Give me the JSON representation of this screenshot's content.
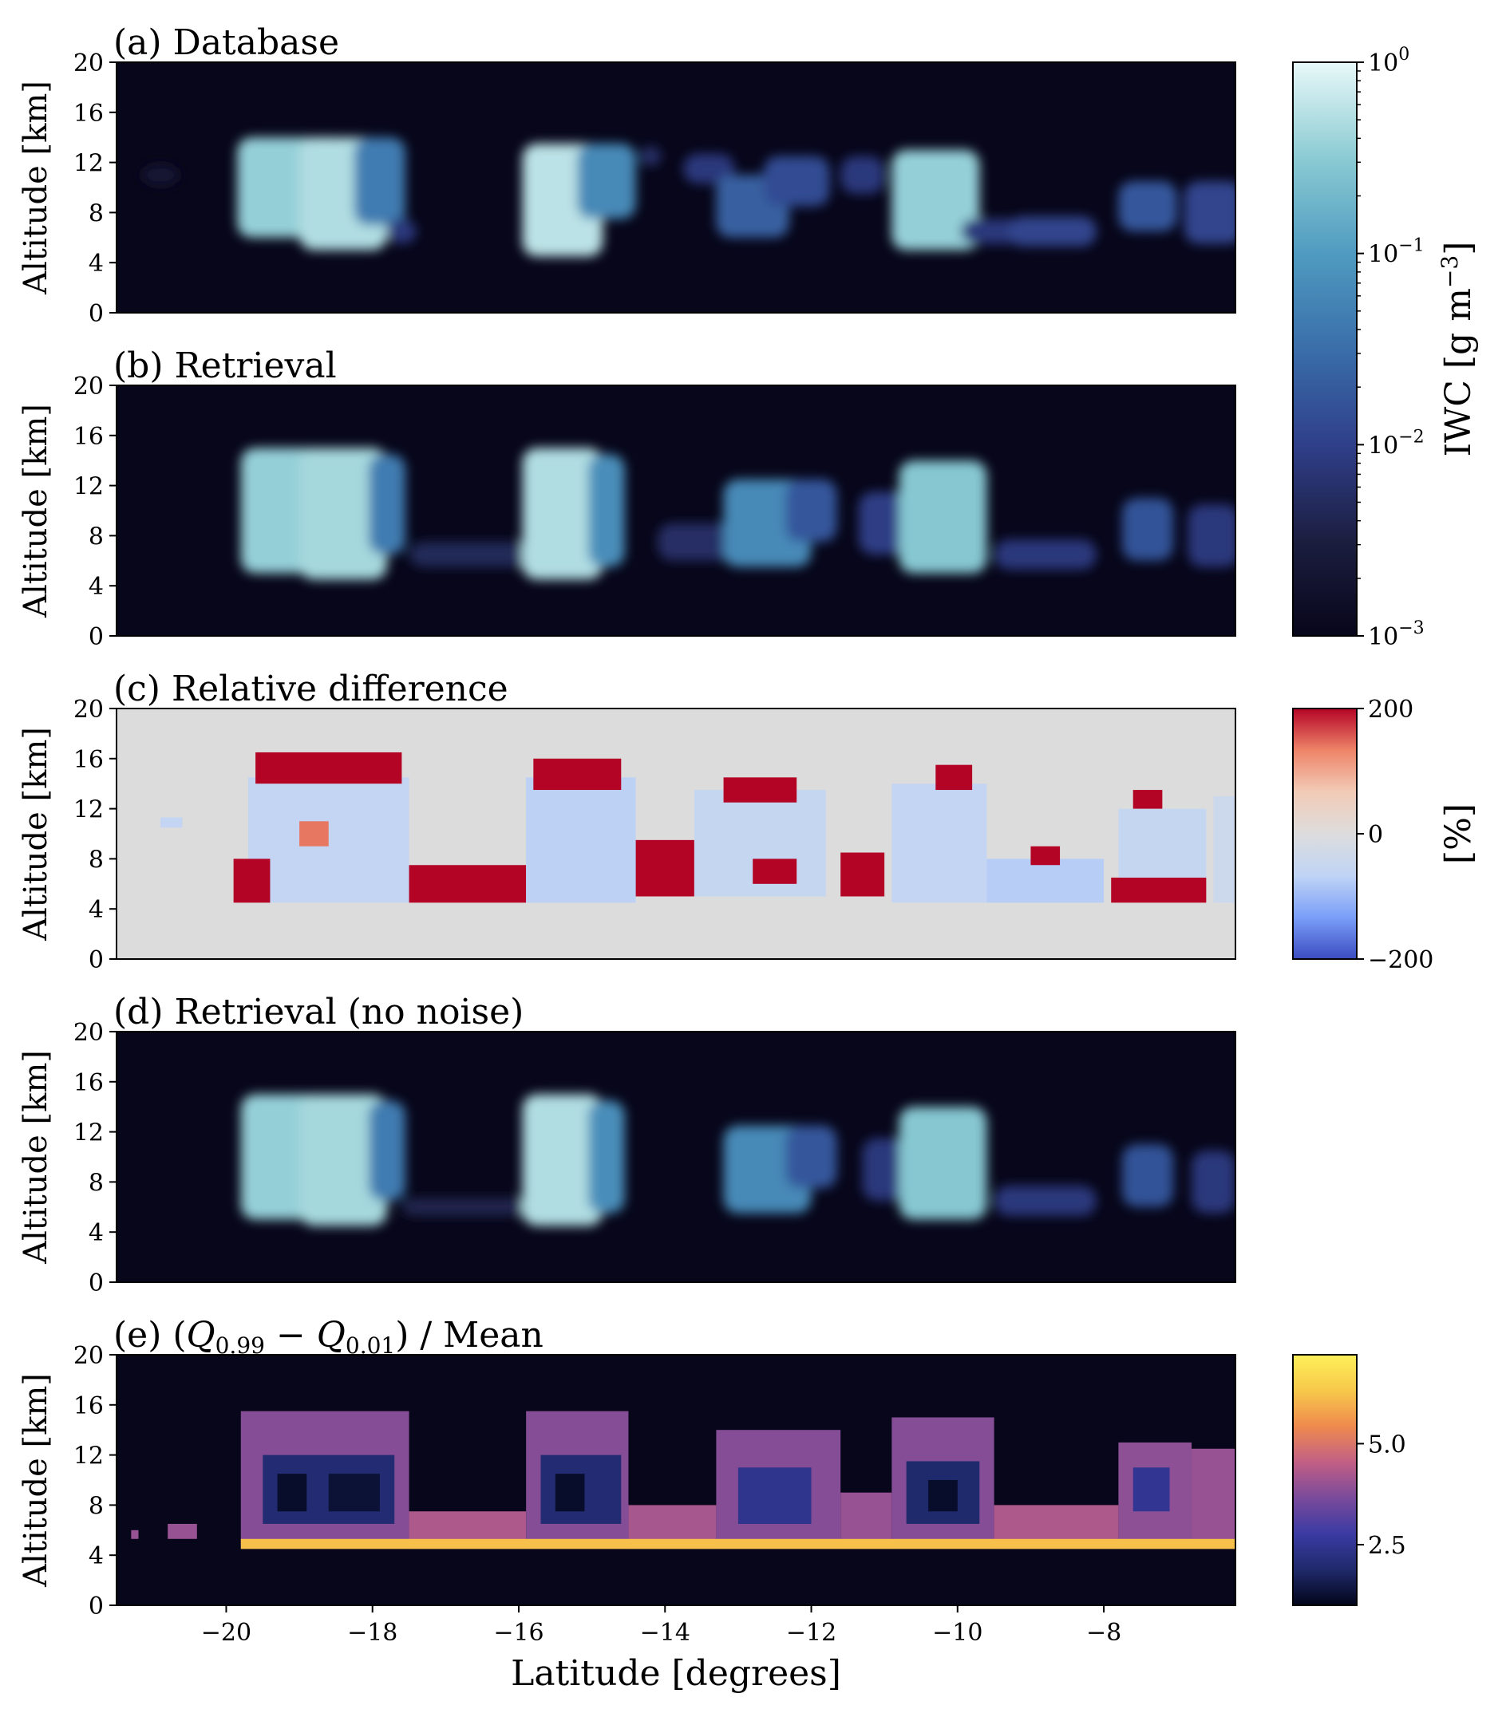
{
  "chart_data": [
    {
      "panel": "a",
      "type": "heatmap",
      "title": "(a) Database",
      "ylabel": "Altitude [km]",
      "xlabel": "",
      "xlim": [
        -21.5,
        -6.2
      ],
      "ylim": [
        0,
        20
      ],
      "yticks": [
        0,
        4,
        8,
        12,
        16,
        20
      ],
      "xticks": [],
      "colorbar": "iwc",
      "background": "#07061a",
      "blobs": [
        {
          "lat": -20.9,
          "alt": 11.0,
          "w": 0.25,
          "h": 0.8,
          "v": 0.12
        },
        {
          "lat": -19.1,
          "alt": 10.0,
          "w": 0.75,
          "h": 4.0,
          "v": 0.85
        },
        {
          "lat": -18.4,
          "alt": 9.5,
          "w": 0.6,
          "h": 4.5,
          "v": 0.9
        },
        {
          "lat": -17.9,
          "alt": 10.5,
          "w": 0.35,
          "h": 3.5,
          "v": 0.55
        },
        {
          "lat": -17.6,
          "alt": 6.5,
          "w": 0.2,
          "h": 1.0,
          "v": 0.3
        },
        {
          "lat": -15.4,
          "alt": 9.0,
          "w": 0.55,
          "h": 4.5,
          "v": 0.92
        },
        {
          "lat": -14.8,
          "alt": 10.5,
          "w": 0.4,
          "h": 3.0,
          "v": 0.6
        },
        {
          "lat": -14.2,
          "alt": 12.5,
          "w": 0.15,
          "h": 0.8,
          "v": 0.25
        },
        {
          "lat": -13.4,
          "alt": 11.5,
          "w": 0.35,
          "h": 1.2,
          "v": 0.3
        },
        {
          "lat": -12.8,
          "alt": 8.5,
          "w": 0.5,
          "h": 2.5,
          "v": 0.45
        },
        {
          "lat": -12.2,
          "alt": 10.5,
          "w": 0.45,
          "h": 2.0,
          "v": 0.38
        },
        {
          "lat": -11.3,
          "alt": 11.0,
          "w": 0.3,
          "h": 1.5,
          "v": 0.3
        },
        {
          "lat": -10.3,
          "alt": 9.0,
          "w": 0.6,
          "h": 4.0,
          "v": 0.85
        },
        {
          "lat": -9.5,
          "alt": 6.5,
          "w": 0.45,
          "h": 1.0,
          "v": 0.3
        },
        {
          "lat": -8.7,
          "alt": 6.5,
          "w": 0.6,
          "h": 1.2,
          "v": 0.35
        },
        {
          "lat": -7.4,
          "alt": 8.5,
          "w": 0.4,
          "h": 2.0,
          "v": 0.42
        },
        {
          "lat": -6.5,
          "alt": 8.0,
          "w": 0.4,
          "h": 2.5,
          "v": 0.35
        }
      ]
    },
    {
      "panel": "b",
      "type": "heatmap",
      "title": "(b) Retrieval",
      "ylabel": "Altitude [km]",
      "xlabel": "",
      "xlim": [
        -21.5,
        -6.2
      ],
      "ylim": [
        0,
        20
      ],
      "yticks": [
        0,
        4,
        8,
        12,
        16,
        20
      ],
      "xticks": [],
      "colorbar": "iwc",
      "background": "#07061a",
      "blobs": [
        {
          "lat": -19.1,
          "alt": 10.0,
          "w": 0.7,
          "h": 5.0,
          "v": 0.85
        },
        {
          "lat": -18.4,
          "alt": 9.5,
          "w": 0.6,
          "h": 5.5,
          "v": 0.88
        },
        {
          "lat": -17.8,
          "alt": 10.5,
          "w": 0.25,
          "h": 4.0,
          "v": 0.55
        },
        {
          "lat": -16.5,
          "alt": 6.5,
          "w": 1.0,
          "h": 1.0,
          "v": 0.22
        },
        {
          "lat": -15.4,
          "alt": 9.5,
          "w": 0.55,
          "h": 5.5,
          "v": 0.9
        },
        {
          "lat": -14.8,
          "alt": 10.0,
          "w": 0.25,
          "h": 4.5,
          "v": 0.62
        },
        {
          "lat": -13.5,
          "alt": 7.5,
          "w": 0.6,
          "h": 1.5,
          "v": 0.25
        },
        {
          "lat": -12.6,
          "alt": 9.0,
          "w": 0.6,
          "h": 3.5,
          "v": 0.6
        },
        {
          "lat": -12.0,
          "alt": 10.0,
          "w": 0.35,
          "h": 2.5,
          "v": 0.42
        },
        {
          "lat": -11.0,
          "alt": 9.0,
          "w": 0.35,
          "h": 2.5,
          "v": 0.32
        },
        {
          "lat": -10.2,
          "alt": 9.5,
          "w": 0.6,
          "h": 4.5,
          "v": 0.82
        },
        {
          "lat": -8.8,
          "alt": 6.5,
          "w": 0.7,
          "h": 1.2,
          "v": 0.3
        },
        {
          "lat": -7.4,
          "alt": 8.5,
          "w": 0.35,
          "h": 2.5,
          "v": 0.4
        },
        {
          "lat": -6.5,
          "alt": 8.0,
          "w": 0.35,
          "h": 2.5,
          "v": 0.3
        }
      ]
    },
    {
      "panel": "c",
      "type": "heatmap",
      "title": "(c) Relative difference",
      "ylabel": "Altitude [km]",
      "xlabel": "",
      "xlim": [
        -21.5,
        -6.2
      ],
      "ylim": [
        0,
        20
      ],
      "yticks": [
        0,
        4,
        8,
        12,
        16,
        20
      ],
      "xticks": [],
      "colorbar": "rel",
      "background": "#dcdcdc",
      "note_cells": "values in % (-200 to 200)",
      "cells": [
        {
          "lat0": -19.7,
          "lat1": -17.5,
          "alt0": 4.5,
          "alt1": 14.5,
          "v": -60
        },
        {
          "lat0": -19.6,
          "lat1": -17.6,
          "alt0": 14.0,
          "alt1": 16.5,
          "v": 200
        },
        {
          "lat0": -19.9,
          "lat1": -19.4,
          "alt0": 4.5,
          "alt1": 8.0,
          "v": 200
        },
        {
          "lat0": -19.0,
          "lat1": -18.6,
          "alt0": 9.0,
          "alt1": 11.0,
          "v": 140
        },
        {
          "lat0": -17.5,
          "lat1": -16.6,
          "alt0": 4.5,
          "alt1": 7.5,
          "v": 200
        },
        {
          "lat0": -16.6,
          "lat1": -15.9,
          "alt0": 4.5,
          "alt1": 7.5,
          "v": 200
        },
        {
          "lat0": -15.9,
          "lat1": -14.4,
          "alt0": 4.5,
          "alt1": 14.5,
          "v": -70
        },
        {
          "lat0": -15.8,
          "lat1": -14.6,
          "alt0": 13.5,
          "alt1": 16.0,
          "v": 200
        },
        {
          "lat0": -14.4,
          "lat1": -13.6,
          "alt0": 5.0,
          "alt1": 9.5,
          "v": 200
        },
        {
          "lat0": -13.6,
          "lat1": -11.8,
          "alt0": 5.0,
          "alt1": 13.5,
          "v": -55
        },
        {
          "lat0": -13.2,
          "lat1": -12.2,
          "alt0": 12.5,
          "alt1": 14.5,
          "v": 200
        },
        {
          "lat0": -12.8,
          "lat1": -12.2,
          "alt0": 6.0,
          "alt1": 8.0,
          "v": 200
        },
        {
          "lat0": -11.6,
          "lat1": -11.0,
          "alt0": 5.0,
          "alt1": 8.5,
          "v": 200
        },
        {
          "lat0": -10.9,
          "lat1": -9.6,
          "alt0": 4.5,
          "alt1": 14.0,
          "v": -60
        },
        {
          "lat0": -10.3,
          "lat1": -9.8,
          "alt0": 13.5,
          "alt1": 15.5,
          "v": 200
        },
        {
          "lat0": -9.6,
          "lat1": -8.0,
          "alt0": 4.5,
          "alt1": 8.0,
          "v": -75
        },
        {
          "lat0": -9.0,
          "lat1": -8.6,
          "alt0": 7.5,
          "alt1": 9.0,
          "v": 200
        },
        {
          "lat0": -7.9,
          "lat1": -6.6,
          "alt0": 4.5,
          "alt1": 6.5,
          "v": 200
        },
        {
          "lat0": -7.8,
          "lat1": -6.6,
          "alt0": 6.5,
          "alt1": 12.0,
          "v": -55
        },
        {
          "lat0": -7.6,
          "lat1": -7.2,
          "alt0": 12.0,
          "alt1": 13.5,
          "v": 200
        },
        {
          "lat0": -6.5,
          "lat1": -6.2,
          "alt0": 4.5,
          "alt1": 13.0,
          "v": -40
        },
        {
          "lat0": -20.9,
          "lat1": -20.6,
          "alt0": 10.5,
          "alt1": 11.3,
          "v": -60
        }
      ]
    },
    {
      "panel": "d",
      "type": "heatmap",
      "title": "(d) Retrieval (no noise)",
      "ylabel": "Altitude [km]",
      "xlabel": "",
      "xlim": [
        -21.5,
        -6.2
      ],
      "ylim": [
        0,
        20
      ],
      "yticks": [
        0,
        4,
        8,
        12,
        16,
        20
      ],
      "xticks": [],
      "colorbar": "iwc",
      "background": "#07061a",
      "blobs": [
        {
          "lat": -19.1,
          "alt": 10.0,
          "w": 0.7,
          "h": 5.0,
          "v": 0.85
        },
        {
          "lat": -18.4,
          "alt": 9.5,
          "w": 0.6,
          "h": 5.5,
          "v": 0.88
        },
        {
          "lat": -17.8,
          "alt": 10.5,
          "w": 0.25,
          "h": 4.0,
          "v": 0.55
        },
        {
          "lat": -16.6,
          "alt": 6.0,
          "w": 1.0,
          "h": 0.7,
          "v": 0.2
        },
        {
          "lat": -15.4,
          "alt": 9.5,
          "w": 0.55,
          "h": 5.5,
          "v": 0.9
        },
        {
          "lat": -14.8,
          "alt": 10.0,
          "w": 0.25,
          "h": 4.5,
          "v": 0.62
        },
        {
          "lat": -12.6,
          "alt": 9.0,
          "w": 0.6,
          "h": 3.5,
          "v": 0.6
        },
        {
          "lat": -12.0,
          "alt": 10.0,
          "w": 0.35,
          "h": 2.5,
          "v": 0.42
        },
        {
          "lat": -11.0,
          "alt": 9.0,
          "w": 0.3,
          "h": 2.5,
          "v": 0.3
        },
        {
          "lat": -10.2,
          "alt": 9.5,
          "w": 0.6,
          "h": 4.5,
          "v": 0.82
        },
        {
          "lat": -8.8,
          "alt": 6.5,
          "w": 0.7,
          "h": 1.2,
          "v": 0.3
        },
        {
          "lat": -7.4,
          "alt": 8.5,
          "w": 0.35,
          "h": 2.5,
          "v": 0.4
        },
        {
          "lat": -6.5,
          "alt": 8.0,
          "w": 0.3,
          "h": 2.5,
          "v": 0.3
        }
      ]
    },
    {
      "panel": "e",
      "type": "heatmap",
      "title": "(e) (Q",
      "title_parts": [
        "(e) (",
        "Q",
        "0.99",
        " − ",
        "Q",
        "0.01",
        ") / Mean"
      ],
      "ylabel": "Altitude [km]",
      "xlabel": "Latitude [degrees]",
      "xlim": [
        -21.5,
        -6.2
      ],
      "ylim": [
        0,
        20
      ],
      "yticks": [
        0,
        4,
        8,
        12,
        16,
        20
      ],
      "xticks": [
        -20,
        -18,
        -16,
        -14,
        -12,
        -10,
        -8
      ],
      "xtick_labels": [
        "−20",
        "−18",
        "−16",
        "−14",
        "−12",
        "−10",
        "−8"
      ],
      "colorbar": "spread",
      "background": "#07061a",
      "cells": [
        {
          "lat0": -19.8,
          "lat1": -17.5,
          "alt0": 4.5,
          "alt1": 15.5,
          "v": 3.8
        },
        {
          "lat0": -19.5,
          "lat1": -17.7,
          "alt0": 6.5,
          "alt1": 12.0,
          "v": 2.0
        },
        {
          "lat0": -19.3,
          "lat1": -18.9,
          "alt0": 7.5,
          "alt1": 10.5,
          "v": 1.2
        },
        {
          "lat0": -18.6,
          "lat1": -17.9,
          "alt0": 7.5,
          "alt1": 10.5,
          "v": 1.3
        },
        {
          "lat0": -17.5,
          "lat1": -15.9,
          "alt0": 4.5,
          "alt1": 7.5,
          "v": 4.3
        },
        {
          "lat0": -15.9,
          "lat1": -14.5,
          "alt0": 4.5,
          "alt1": 15.5,
          "v": 3.8
        },
        {
          "lat0": -15.7,
          "lat1": -14.6,
          "alt0": 6.5,
          "alt1": 12.0,
          "v": 2.0
        },
        {
          "lat0": -15.5,
          "lat1": -15.1,
          "alt0": 7.5,
          "alt1": 10.5,
          "v": 1.2
        },
        {
          "lat0": -14.5,
          "lat1": -13.3,
          "alt0": 4.5,
          "alt1": 8.0,
          "v": 4.2
        },
        {
          "lat0": -13.3,
          "lat1": -11.6,
          "alt0": 4.5,
          "alt1": 14.0,
          "v": 3.8
        },
        {
          "lat0": -13.0,
          "lat1": -12.0,
          "alt0": 6.5,
          "alt1": 11.0,
          "v": 2.4
        },
        {
          "lat0": -11.6,
          "lat1": -10.9,
          "alt0": 4.5,
          "alt1": 9.0,
          "v": 4.0
        },
        {
          "lat0": -10.9,
          "lat1": -9.5,
          "alt0": 4.5,
          "alt1": 15.0,
          "v": 3.8
        },
        {
          "lat0": -10.7,
          "lat1": -9.7,
          "alt0": 6.5,
          "alt1": 11.5,
          "v": 1.9
        },
        {
          "lat0": -10.4,
          "lat1": -10.0,
          "alt0": 7.5,
          "alt1": 10.0,
          "v": 1.2
        },
        {
          "lat0": -9.5,
          "lat1": -7.8,
          "alt0": 4.5,
          "alt1": 8.0,
          "v": 4.3
        },
        {
          "lat0": -7.8,
          "lat1": -6.8,
          "alt0": 4.5,
          "alt1": 13.0,
          "v": 3.9
        },
        {
          "lat0": -7.6,
          "lat1": -7.1,
          "alt0": 7.5,
          "alt1": 11.0,
          "v": 2.5
        },
        {
          "lat0": -6.8,
          "lat1": -6.2,
          "alt0": 4.5,
          "alt1": 12.5,
          "v": 4.0
        },
        {
          "lat0": -19.8,
          "lat1": -6.2,
          "alt0": 4.5,
          "alt1": 5.3,
          "v": 6.2
        },
        {
          "lat0": -21.3,
          "lat1": -21.2,
          "alt0": 5.3,
          "alt1": 6.0,
          "v": 4.0
        },
        {
          "lat0": -20.8,
          "lat1": -20.4,
          "alt0": 5.3,
          "alt1": 6.5,
          "v": 4.0
        }
      ]
    }
  ],
  "colorbars": {
    "iwc": {
      "label": "IWC [g m",
      "label_sup": "−3",
      "label_end": "]",
      "scale": "log",
      "range": [
        0.001,
        1
      ],
      "ticks": [
        {
          "base": "10",
          "exp": "0",
          "pos": 1.0
        },
        {
          "base": "10",
          "exp": "−1",
          "pos": 0.6667
        },
        {
          "base": "10",
          "exp": "−2",
          "pos": 0.3333
        },
        {
          "base": "10",
          "exp": "−3",
          "pos": 0.0
        }
      ],
      "colors": [
        "#07061a",
        "#1c1e40",
        "#2f3f8a",
        "#3a6eaa",
        "#4f9bc0",
        "#8bcbd3",
        "#e8f8f8"
      ]
    },
    "rel": {
      "label": "[%]",
      "range": [
        -200,
        200
      ],
      "ticks": [
        "200",
        "0",
        "−200"
      ],
      "colors": [
        "#3b4cc0",
        "#7b9ff9",
        "#c0d4f5",
        "#dddddd",
        "#f2cbb7",
        "#ee8468",
        "#b40426"
      ]
    },
    "spread": {
      "label": "",
      "range": [
        1.0,
        7.2
      ],
      "ticks": [
        "5.0",
        "2.5"
      ],
      "tick_values": [
        5.0,
        2.5
      ],
      "colors": [
        "#03051a",
        "#1f2a6b",
        "#3b3ba3",
        "#7a4a9b",
        "#c25f85",
        "#ef8a4e",
        "#f7c84a",
        "#fdf05a"
      ]
    }
  }
}
